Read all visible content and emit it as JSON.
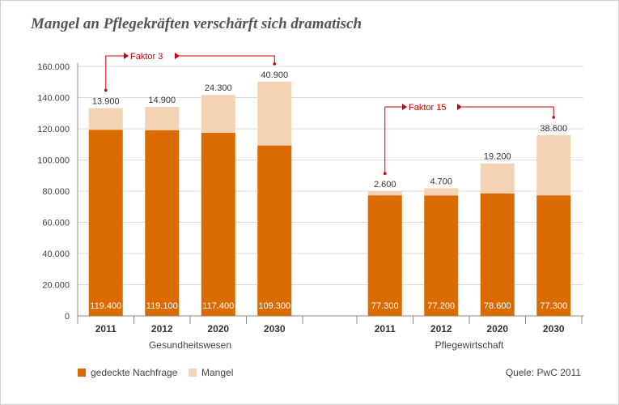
{
  "title": "Mangel an Pflegekräften verschärft sich dramatisch",
  "source": "Quele: PwC 2011",
  "colors": {
    "covered": "#d96b00",
    "shortage": "#f4d2b4",
    "annotation": "#cc0000",
    "grid": "#d9d9d9",
    "axis": "#888888"
  },
  "chart_data": {
    "type": "bar",
    "stacked": true,
    "ylim": [
      0,
      160000
    ],
    "yticks": [
      "0",
      "20.000",
      "40.000",
      "60.000",
      "80.000",
      "100.000",
      "120.000",
      "140.000",
      "160.000"
    ],
    "grid": true,
    "legend_position": "bottom-left",
    "series": [
      {
        "name": "gedeckte Nachfrage",
        "color": "#d96b00"
      },
      {
        "name": "Mangel",
        "color": "#f4d2b4"
      }
    ],
    "groups": [
      {
        "label": "Gesundheitswesen",
        "categories": [
          "2011",
          "2012",
          "2020",
          "2030"
        ],
        "covered": [
          119400,
          119100,
          117400,
          109300
        ],
        "shortage": [
          13900,
          14900,
          24300,
          40900
        ],
        "covered_labels": [
          "119.400",
          "119.100",
          "117.400",
          "109.300"
        ],
        "shortage_labels": [
          "13.900",
          "14.900",
          "24.300",
          "40.900"
        ],
        "annotation": "Faktor 3"
      },
      {
        "label": "Pflegewirtschaft",
        "categories": [
          "2011",
          "2012",
          "2020",
          "2030"
        ],
        "covered": [
          77300,
          77200,
          78600,
          77300
        ],
        "shortage": [
          2600,
          4700,
          19200,
          38600
        ],
        "covered_labels": [
          "77.300",
          "77.200",
          "78.600",
          "77.300"
        ],
        "shortage_labels": [
          "2.600",
          "4.700",
          "19.200",
          "38.600"
        ],
        "annotation": "Faktor 15"
      }
    ]
  }
}
